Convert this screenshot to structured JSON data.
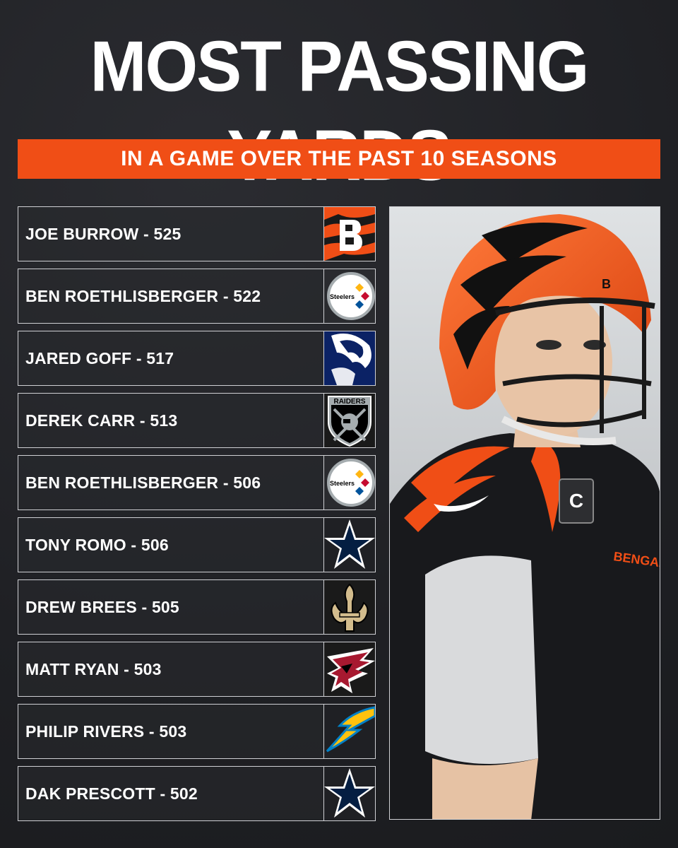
{
  "header": {
    "title": "MOST PASSING YARDS",
    "subtitle": "IN A GAME OVER THE PAST 10 SEASONS"
  },
  "colors": {
    "background": "#222327",
    "accent": "#f04e16",
    "text": "#ffffff"
  },
  "rows": [
    {
      "label": "JOE BURROW - 525",
      "team_icon": "bengals-logo-icon"
    },
    {
      "label": "BEN ROETHLISBERGER - 522",
      "team_icon": "steelers-logo-icon",
      "logo_text": "Steelers"
    },
    {
      "label": "JARED GOFF - 517",
      "team_icon": "rams-logo-icon"
    },
    {
      "label": "DEREK CARR - 513",
      "team_icon": "raiders-logo-icon",
      "logo_text": "RAIDERS"
    },
    {
      "label": "BEN ROETHLISBERGER - 506",
      "team_icon": "steelers-logo-icon",
      "logo_text": "Steelers"
    },
    {
      "label": "TONY ROMO - 506",
      "team_icon": "cowboys-logo-icon"
    },
    {
      "label": "DREW BREES - 505",
      "team_icon": "saints-logo-icon"
    },
    {
      "label": "MATT RYAN - 503",
      "team_icon": "falcons-logo-icon"
    },
    {
      "label": "PHILIP RIVERS - 503",
      "team_icon": "chargers-logo-icon"
    },
    {
      "label": "DAK PRESCOTT - 502",
      "team_icon": "cowboys-logo-icon"
    }
  ],
  "photo": {
    "jersey_text": "BENGALS",
    "helmet_logo": "B",
    "patch_text": "C"
  }
}
